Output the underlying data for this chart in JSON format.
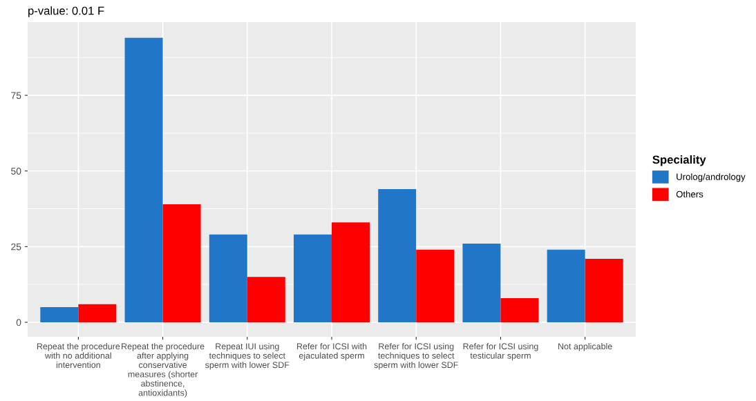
{
  "chart_data": {
    "type": "bar",
    "subtitle": "p-value: 0.01 F",
    "legend_title": "Speciality",
    "categories": [
      "Repeat the procedure\nwith no additional\nintervention",
      "Repeat the procedure\nafter applying\nconservative\nmeasures (shorter\nabstinence,\nantioxidants)",
      "Repeat IUI using\ntechniques to select\nsperm with lower SDF",
      "Refer for ICSI with\nejaculated sperm",
      "Refer for ICSI using\ntechniques to select\nsperm with lower SDF",
      "Refer for ICSI using\ntesticular sperm",
      "Not applicable"
    ],
    "series": [
      {
        "name": "Urolog/andrology",
        "color": "#2077c8",
        "values": [
          5,
          94,
          29,
          29,
          44,
          26,
          24
        ]
      },
      {
        "name": "Others",
        "color": "#ff0000",
        "values": [
          6,
          39,
          15,
          33,
          24,
          8,
          21
        ]
      }
    ],
    "ylim": [
      -4.8,
      99.2
    ],
    "yticks": [
      0,
      25,
      50,
      75
    ],
    "grid": true,
    "legend": "right"
  }
}
